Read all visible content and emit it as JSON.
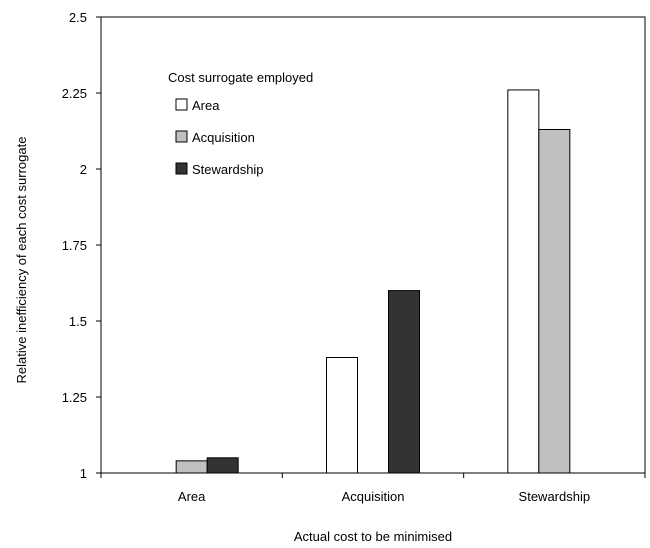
{
  "chart_data": {
    "type": "bar",
    "title": "",
    "xlabel": "Actual cost to be minimised",
    "ylabel": "Relative inefficiency of each cost surrogate",
    "categories": [
      "Area",
      "Acquisition",
      "Stewardship"
    ],
    "series": [
      {
        "name": "Area",
        "color": "#ffffff",
        "values": [
          1.0,
          1.38,
          2.26
        ]
      },
      {
        "name": "Acquisition",
        "color": "#c0c0c0",
        "values": [
          1.04,
          1.0,
          2.13
        ]
      },
      {
        "name": "Stewardship",
        "color": "#333333",
        "values": [
          1.05,
          1.6,
          1.0
        ]
      }
    ],
    "ylim": [
      1,
      2.5
    ],
    "yticks": [
      "1",
      "1.25",
      "1.5",
      "1.75",
      "2",
      "2.25",
      "2.5"
    ],
    "grid": false,
    "legend": {
      "title": "Cost surrogate employed",
      "placement": "top-left"
    }
  }
}
